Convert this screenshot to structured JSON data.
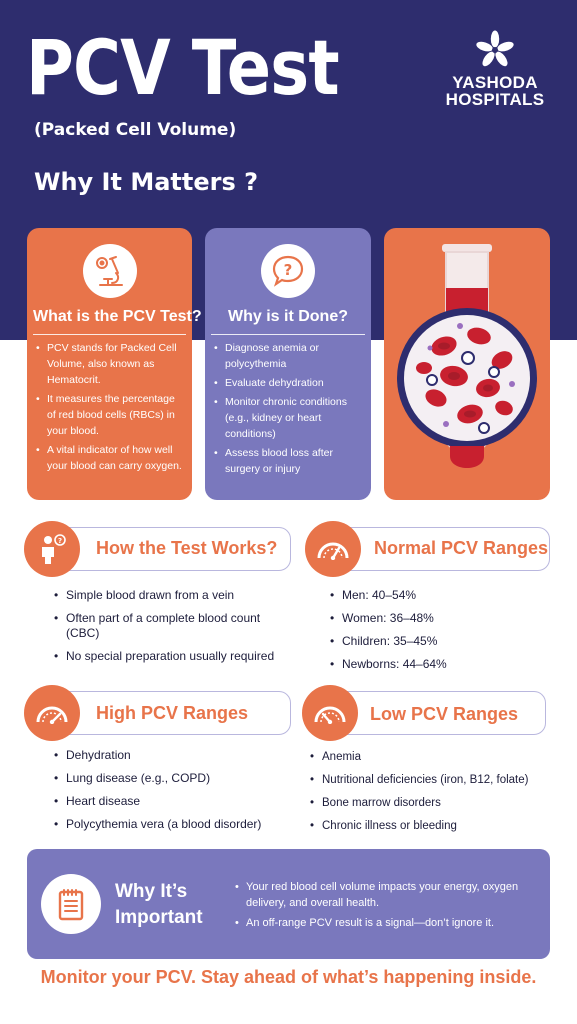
{
  "header": {
    "title": "PCV Test",
    "subtitle": "(Packed Cell Volume)",
    "heading": "Why It Matters ?"
  },
  "brand": {
    "line1": "YASHODA",
    "line2": "HOSPITALS",
    "icon": "flower-logo-icon"
  },
  "cards": [
    {
      "title": "What is the PCV Test?",
      "icon": "microscope-icon",
      "items": [
        "PCV stands for Packed Cell Volume, also known as Hematocrit.",
        "It measures the percentage of red blood cells (RBCs) in your blood.",
        "A vital indicator of how well your blood can carry oxygen."
      ]
    },
    {
      "title": "Why is it Done?",
      "icon": "question-icon",
      "items": [
        "Diagnose anemia or polycythemia",
        "Evaluate dehydration",
        "Monitor chronic conditions (e.g., kidney or heart conditions)",
        "Assess blood loss after surgery or injury"
      ]
    },
    {
      "icon": "blood-test-tube-illustration"
    }
  ],
  "sections": {
    "how": {
      "title": "How the Test Works?",
      "icon": "person-info-icon",
      "items": [
        "Simple blood drawn from a vein",
        "Often part of a complete blood count (CBC)",
        "No special preparation usually required"
      ]
    },
    "normal": {
      "title": "Normal PCV Ranges",
      "icon": "gauge-icon",
      "items": [
        "Men: 40–54%",
        "Women: 36–48%",
        "Children: 35–45%",
        "Newborns: 44–64%"
      ]
    },
    "high": {
      "title": "High PCV Ranges",
      "icon": "gauge-icon",
      "items": [
        "Dehydration",
        "Lung disease (e.g., COPD)",
        "Heart disease",
        "Polycythemia vera (a blood disorder)"
      ]
    },
    "low": {
      "title": "Low PCV Ranges",
      "icon": "gauge-icon",
      "items": [
        "Anemia",
        "Nutritional deficiencies (iron, B12, folate)",
        "Bone marrow disorders",
        "Chronic illness or bleeding"
      ]
    }
  },
  "important": {
    "title_line1": "Why It’s",
    "title_line2": "Important",
    "icon": "notepad-icon",
    "items": [
      "Your red blood cell volume impacts your energy, oxygen delivery, and overall health.",
      "An off-range PCV result is a signal—don’t ignore it."
    ]
  },
  "footer": "Monitor your PCV. Stay ahead of what’s happening inside.",
  "colors": {
    "navy": "#2e2d6e",
    "orange": "#e8744a",
    "purple": "#7a78bd",
    "blood_red": "#c8202f"
  }
}
